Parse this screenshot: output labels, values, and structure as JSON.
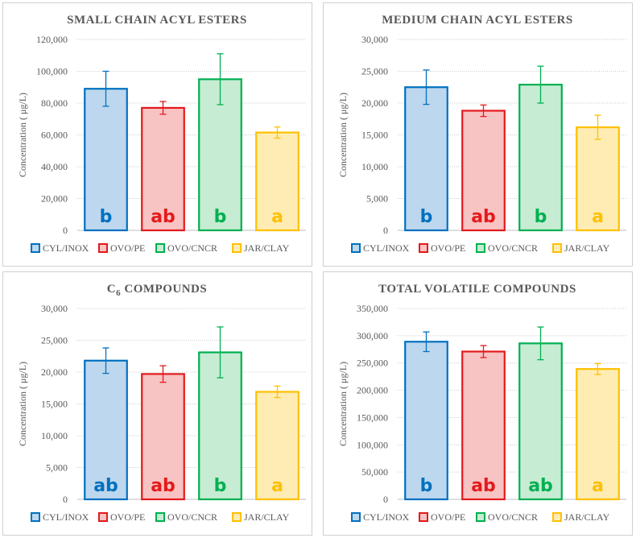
{
  "y_axis_label": "Concentration ( μg/L)",
  "legend": [
    {
      "name": "CYL/INOX",
      "color": "#0070c0",
      "fill": "#bdd7ee"
    },
    {
      "name": "OVO/PE",
      "color": "#e31a1c",
      "fill": "#f8c3c3"
    },
    {
      "name": "OVO/CNCR",
      "color": "#00b050",
      "fill": "#c6ecd3"
    },
    {
      "name": "JAR/CLAY",
      "color": "#ffc000",
      "fill": "#ffecb3"
    }
  ],
  "chart_data": [
    {
      "type": "bar",
      "title": "SMALL CHAIN ACYL ESTERS",
      "ylabel": "Concentration ( μg/L)",
      "ylim": [
        0,
        120000
      ],
      "yticks": [
        0,
        20000,
        40000,
        60000,
        80000,
        100000,
        120000
      ],
      "ytick_labels": [
        "0",
        "20,000",
        "40,000",
        "60,000",
        "80,000",
        "100,000",
        "120,000"
      ],
      "categories": [
        "CYL/INOX",
        "OVO/PE",
        "OVO/CNCR",
        "JAR/CLAY"
      ],
      "values": [
        89000,
        77000,
        95000,
        61500
      ],
      "errors": [
        11000,
        4000,
        16000,
        3500
      ],
      "letters": [
        "b",
        "ab",
        "b",
        "a"
      ]
    },
    {
      "type": "bar",
      "title": "MEDIUM CHAIN ACYL ESTERS",
      "ylabel": "Concentration ( μg/L)",
      "ylim": [
        0,
        30000
      ],
      "yticks": [
        0,
        5000,
        10000,
        15000,
        20000,
        25000,
        30000
      ],
      "ytick_labels": [
        "0",
        "5,000",
        "10,000",
        "15,000",
        "20,000",
        "25,000",
        "30,000"
      ],
      "categories": [
        "CYL/INOX",
        "OVO/PE",
        "OVO/CNCR",
        "JAR/CLAY"
      ],
      "values": [
        22500,
        18800,
        22900,
        16200
      ],
      "errors": [
        2700,
        900,
        2900,
        1900
      ],
      "letters": [
        "b",
        "ab",
        "b",
        "a"
      ]
    },
    {
      "type": "bar",
      "title": "C",
      "title_sub": "6",
      "title_rest": " COMPOUNDS",
      "ylabel": "Concentration ( μg/L)",
      "ylim": [
        0,
        30000
      ],
      "yticks": [
        0,
        5000,
        10000,
        15000,
        20000,
        25000,
        30000
      ],
      "ytick_labels": [
        "0",
        "5,000",
        "10,000",
        "15,000",
        "20,000",
        "25,000",
        "30,000"
      ],
      "categories": [
        "CYL/INOX",
        "OVO/PE",
        "OVO/CNCR",
        "JAR/CLAY"
      ],
      "values": [
        21800,
        19700,
        23100,
        16900
      ],
      "errors": [
        2000,
        1300,
        4000,
        900
      ],
      "letters": [
        "ab",
        "ab",
        "b",
        "a"
      ]
    },
    {
      "type": "bar",
      "title": "TOTAL VOLATILE COMPOUNDS",
      "ylabel": "Concentration ( μg/L)",
      "ylim": [
        0,
        350000
      ],
      "yticks": [
        0,
        50000,
        100000,
        150000,
        200000,
        250000,
        300000,
        350000
      ],
      "ytick_labels": [
        "0",
        "50,000",
        "100,000",
        "150,000",
        "200,000",
        "250,000",
        "300,000",
        "350,000"
      ],
      "categories": [
        "CYL/INOX",
        "OVO/PE",
        "OVO/CNCR",
        "JAR/CLAY"
      ],
      "values": [
        289000,
        271000,
        286000,
        239000
      ],
      "errors": [
        18000,
        11000,
        30000,
        10000
      ],
      "letters": [
        "b",
        "ab",
        "ab",
        "a"
      ]
    }
  ]
}
